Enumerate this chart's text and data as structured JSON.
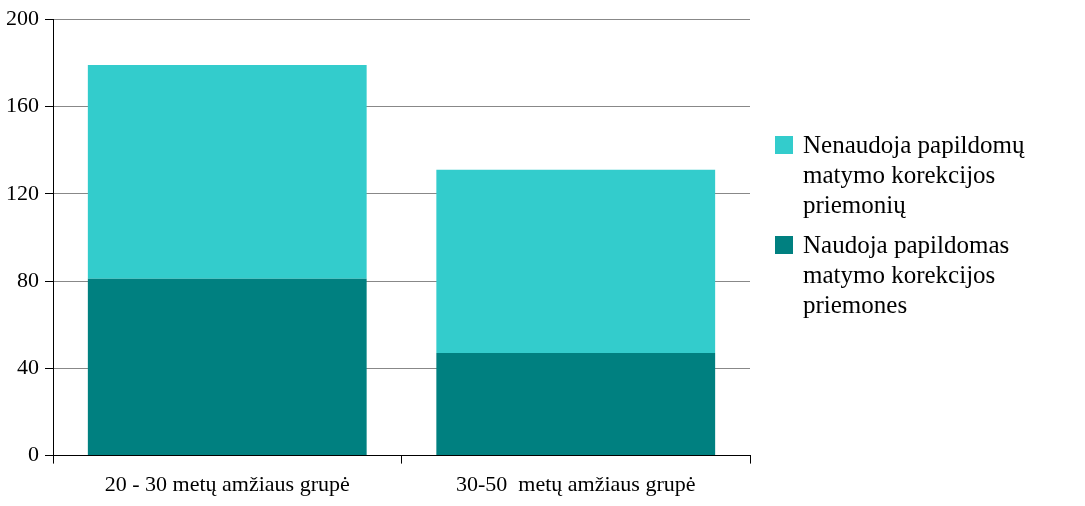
{
  "chart_data": {
    "type": "bar",
    "stacked": true,
    "categories": [
      "20 - 30 metų amžiaus grupė",
      "30-50  metų amžiaus grupė"
    ],
    "series": [
      {
        "name": "Naudoja papildomas matymo korekcijos priemones",
        "color": "#008080",
        "values": [
          81,
          47
        ]
      },
      {
        "name": "Nenaudoja papildomų matymo korekcijos priemonių",
        "color": "#33cccc",
        "values": [
          98,
          84
        ]
      }
    ],
    "ylim": [
      0,
      200
    ],
    "yticks": [
      0,
      40,
      80,
      120,
      160,
      200
    ],
    "grid": "y",
    "legend": "right"
  }
}
